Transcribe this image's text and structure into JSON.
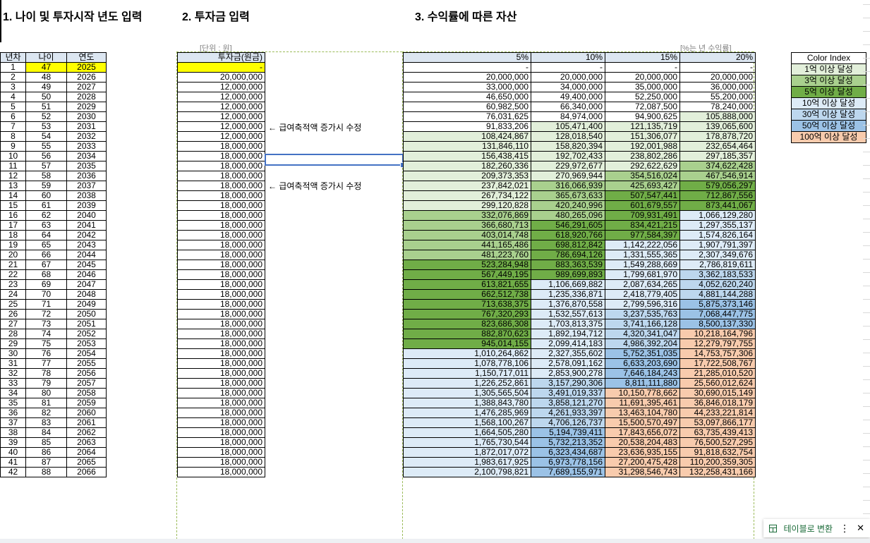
{
  "headers": {
    "h1": "1. 나이 및 투자시작 년도 입력",
    "h2": "2. 투자금 입력",
    "h3": "3. 수익률에 따른 자산"
  },
  "notes": {
    "unit": "[단위 : 원]",
    "rate": "[%는 년 수익률]",
    "salary_note": "← 급여축적액 증가시 수정"
  },
  "left_table": {
    "columns": [
      "년차",
      "나이",
      "연도"
    ],
    "rows": [
      [
        "1",
        "47",
        "2025"
      ],
      [
        "2",
        "48",
        "2026"
      ],
      [
        "3",
        "49",
        "2027"
      ],
      [
        "4",
        "50",
        "2028"
      ],
      [
        "5",
        "51",
        "2029"
      ],
      [
        "6",
        "52",
        "2030"
      ],
      [
        "7",
        "53",
        "2031"
      ],
      [
        "8",
        "54",
        "2032"
      ],
      [
        "9",
        "55",
        "2033"
      ],
      [
        "10",
        "56",
        "2034"
      ],
      [
        "11",
        "57",
        "2035"
      ],
      [
        "12",
        "58",
        "2036"
      ],
      [
        "13",
        "59",
        "2037"
      ],
      [
        "14",
        "60",
        "2038"
      ],
      [
        "15",
        "61",
        "2039"
      ],
      [
        "16",
        "62",
        "2040"
      ],
      [
        "17",
        "63",
        "2041"
      ],
      [
        "18",
        "64",
        "2042"
      ],
      [
        "19",
        "65",
        "2043"
      ],
      [
        "20",
        "66",
        "2044"
      ],
      [
        "21",
        "67",
        "2045"
      ],
      [
        "22",
        "68",
        "2046"
      ],
      [
        "23",
        "69",
        "2047"
      ],
      [
        "24",
        "70",
        "2048"
      ],
      [
        "25",
        "71",
        "2049"
      ],
      [
        "26",
        "72",
        "2050"
      ],
      [
        "27",
        "73",
        "2051"
      ],
      [
        "28",
        "74",
        "2052"
      ],
      [
        "29",
        "75",
        "2053"
      ],
      [
        "30",
        "76",
        "2054"
      ],
      [
        "31",
        "77",
        "2055"
      ],
      [
        "32",
        "78",
        "2056"
      ],
      [
        "33",
        "79",
        "2057"
      ],
      [
        "34",
        "80",
        "2058"
      ],
      [
        "35",
        "81",
        "2059"
      ],
      [
        "36",
        "82",
        "2060"
      ],
      [
        "37",
        "83",
        "2061"
      ],
      [
        "38",
        "84",
        "2062"
      ],
      [
        "39",
        "85",
        "2063"
      ],
      [
        "40",
        "86",
        "2064"
      ],
      [
        "41",
        "87",
        "2065"
      ],
      [
        "42",
        "88",
        "2066"
      ]
    ]
  },
  "invest_table": {
    "column": "투자금(원금)",
    "values": [
      "-",
      "20,000,000",
      "12,000,000",
      "12,000,000",
      "12,000,000",
      "12,000,000",
      "12,000,000",
      "12,000,000",
      "18,000,000",
      "18,000,000",
      "18,000,000",
      "18,000,000",
      "18,000,000",
      "18,000,000",
      "18,000,000",
      "18,000,000",
      "18,000,000",
      "18,000,000",
      "18,000,000",
      "18,000,000",
      "18,000,000",
      "18,000,000",
      "18,000,000",
      "18,000,000",
      "18,000,000",
      "18,000,000",
      "18,000,000",
      "18,000,000",
      "18,000,000",
      "18,000,000",
      "18,000,000",
      "18,000,000",
      "18,000,000",
      "18,000,000",
      "18,000,000",
      "18,000,000",
      "18,000,000",
      "18,000,000",
      "18,000,000",
      "18,000,000",
      "18,000,000",
      "18,000,000"
    ]
  },
  "returns_table": {
    "columns": [
      "5%",
      "10%",
      "15%",
      "20%"
    ],
    "rows": [
      [
        "-",
        "-",
        "-",
        "-"
      ],
      [
        "20,000,000",
        "20,000,000",
        "20,000,000",
        "20,000,000"
      ],
      [
        "33,000,000",
        "34,000,000",
        "35,000,000",
        "36,000,000"
      ],
      [
        "46,650,000",
        "49,400,000",
        "52,250,000",
        "55,200,000"
      ],
      [
        "60,982,500",
        "66,340,000",
        "72,087,500",
        "78,240,000"
      ],
      [
        "76,031,625",
        "84,974,000",
        "94,900,625",
        "105,888,000"
      ],
      [
        "91,833,206",
        "105,471,400",
        "121,135,719",
        "139,065,600"
      ],
      [
        "108,424,867",
        "128,018,540",
        "151,306,077",
        "178,878,720"
      ],
      [
        "131,846,110",
        "158,820,394",
        "192,001,988",
        "232,654,464"
      ],
      [
        "156,438,415",
        "192,702,433",
        "238,802,286",
        "297,185,357"
      ],
      [
        "182,260,336",
        "229,972,677",
        "292,622,629",
        "374,622,428"
      ],
      [
        "209,373,353",
        "270,969,944",
        "354,516,024",
        "467,546,914"
      ],
      [
        "237,842,021",
        "316,066,939",
        "425,693,427",
        "579,056,297"
      ],
      [
        "267,734,122",
        "365,673,633",
        "507,547,441",
        "712,867,556"
      ],
      [
        "299,120,828",
        "420,240,996",
        "601,679,557",
        "873,441,067"
      ],
      [
        "332,076,869",
        "480,265,096",
        "709,931,491",
        "1,066,129,280"
      ],
      [
        "366,680,713",
        "546,291,605",
        "834,421,215",
        "1,297,355,137"
      ],
      [
        "403,014,748",
        "618,920,766",
        "977,584,397",
        "1,574,826,164"
      ],
      [
        "441,165,486",
        "698,812,842",
        "1,142,222,056",
        "1,907,791,397"
      ],
      [
        "481,223,760",
        "786,694,126",
        "1,331,555,365",
        "2,307,349,676"
      ],
      [
        "523,284,948",
        "883,363,539",
        "1,549,288,669",
        "2,786,819,611"
      ],
      [
        "567,449,195",
        "989,699,893",
        "1,799,681,970",
        "3,362,183,533"
      ],
      [
        "613,821,655",
        "1,106,669,882",
        "2,087,634,265",
        "4,052,620,240"
      ],
      [
        "662,512,738",
        "1,235,336,871",
        "2,418,779,405",
        "4,881,144,288"
      ],
      [
        "713,638,375",
        "1,376,870,558",
        "2,799,596,316",
        "5,875,373,146"
      ],
      [
        "767,320,293",
        "1,532,557,613",
        "3,237,535,763",
        "7,068,447,775"
      ],
      [
        "823,686,308",
        "1,703,813,375",
        "3,741,166,128",
        "8,500,137,330"
      ],
      [
        "882,870,623",
        "1,892,194,712",
        "4,320,341,047",
        "10,218,164,796"
      ],
      [
        "945,014,155",
        "2,099,414,183",
        "4,986,392,204",
        "12,279,797,755"
      ],
      [
        "1,010,264,862",
        "2,327,355,602",
        "5,752,351,035",
        "14,753,757,306"
      ],
      [
        "1,078,778,106",
        "2,578,091,162",
        "6,633,203,690",
        "17,722,508,767"
      ],
      [
        "1,150,717,011",
        "2,853,900,278",
        "7,646,184,243",
        "21,285,010,520"
      ],
      [
        "1,226,252,861",
        "3,157,290,306",
        "8,811,111,880",
        "25,560,012,624"
      ],
      [
        "1,305,565,504",
        "3,491,019,337",
        "10,150,778,662",
        "30,690,015,149"
      ],
      [
        "1,388,843,780",
        "3,858,121,270",
        "11,691,395,461",
        "36,846,018,179"
      ],
      [
        "1,476,285,969",
        "4,261,933,397",
        "13,463,104,780",
        "44,233,221,814"
      ],
      [
        "1,568,100,267",
        "4,706,126,737",
        "15,500,570,497",
        "53,097,866,177"
      ],
      [
        "1,664,505,280",
        "5,194,739,411",
        "17,843,656,072",
        "63,735,439,413"
      ],
      [
        "1,765,730,544",
        "5,732,213,352",
        "20,538,204,483",
        "76,500,527,295"
      ],
      [
        "1,872,017,072",
        "6,323,434,687",
        "23,636,935,155",
        "91,818,632,754"
      ],
      [
        "1,983,617,925",
        "6,973,778,156",
        "27,200,475,428",
        "110,200,359,305"
      ],
      [
        "2,100,798,821",
        "7,689,155,971",
        "31,298,546,743",
        "132,258,431,166"
      ]
    ]
  },
  "color_index": {
    "title": "Color Index",
    "items": [
      {
        "label": "1억 이상 달성",
        "color": "#e2efda"
      },
      {
        "label": "3억 이상 달성",
        "color": "#a9d08e"
      },
      {
        "label": "5억 이상 달성",
        "color": "#70ad47"
      },
      {
        "label": "10억 이상 달성",
        "color": "#ddebf7"
      },
      {
        "label": "30억 이상 달성",
        "color": "#bdd7ee"
      },
      {
        "label": "50억 이상 달성",
        "color": "#9bc2e6"
      },
      {
        "label": "100억 이상 달성",
        "color": "#f8cbad"
      }
    ]
  },
  "table_popup": {
    "label": "테이블로 변환",
    "more": "⋮",
    "close": "✕"
  },
  "icons": {
    "table_icon": "table-icon"
  }
}
